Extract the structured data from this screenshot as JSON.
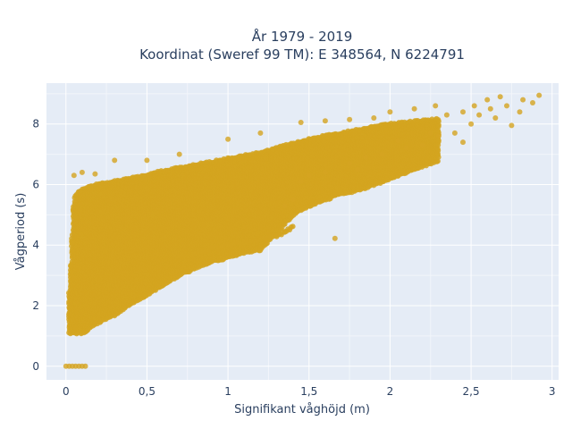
{
  "chart_data": {
    "type": "scatter",
    "title_line1": "År 1979 - 2019",
    "title_line2": "Koordinat (Sweref 99 TM): E 348564, N 6224791",
    "xlabel": "Signifikant våghöjd (m)",
    "ylabel": "Vågperiod (s)",
    "xlim": [
      -0.12,
      3.04
    ],
    "ylim": [
      -0.45,
      9.35
    ],
    "x_ticks": [
      0,
      0.5,
      1,
      1.5,
      2,
      2.5,
      3
    ],
    "x_tick_labels": [
      "0",
      "0,5",
      "1",
      "1,5",
      "2",
      "2,5",
      "3"
    ],
    "y_ticks": [
      0,
      2,
      4,
      6,
      8
    ],
    "y_tick_labels": [
      "0",
      "2",
      "4",
      "6",
      "8"
    ],
    "grid": true,
    "colors": {
      "marker": "#D4A420",
      "plot_bg": "#E5ECF6",
      "grid": "#ffffff",
      "text": "#2a3f5f"
    },
    "density_envelope": {
      "lower": [
        [
          0.02,
          1.1
        ],
        [
          0.1,
          1.1
        ],
        [
          0.2,
          1.45
        ],
        [
          0.3,
          1.7
        ],
        [
          0.4,
          2.05
        ],
        [
          0.5,
          2.35
        ],
        [
          0.6,
          2.7
        ],
        [
          0.7,
          3.0
        ],
        [
          0.8,
          3.25
        ],
        [
          0.9,
          3.45
        ],
        [
          1.0,
          3.6
        ],
        [
          1.1,
          3.75
        ],
        [
          1.2,
          3.85
        ],
        [
          1.3,
          4.4
        ],
        [
          1.4,
          5.0
        ],
        [
          1.5,
          5.3
        ],
        [
          1.6,
          5.5
        ],
        [
          1.7,
          5.7
        ],
        [
          1.8,
          5.8
        ],
        [
          1.9,
          6.0
        ],
        [
          2.0,
          6.2
        ],
        [
          2.1,
          6.4
        ],
        [
          2.2,
          6.6
        ],
        [
          2.3,
          6.8
        ]
      ],
      "upper": [
        [
          0.02,
          2.4
        ],
        [
          0.05,
          5.6
        ],
        [
          0.1,
          5.85
        ],
        [
          0.2,
          6.0
        ],
        [
          0.3,
          6.1
        ],
        [
          0.4,
          6.2
        ],
        [
          0.5,
          6.3
        ],
        [
          0.6,
          6.45
        ],
        [
          0.7,
          6.55
        ],
        [
          0.8,
          6.65
        ],
        [
          0.9,
          6.75
        ],
        [
          1.0,
          6.85
        ],
        [
          1.1,
          6.95
        ],
        [
          1.2,
          7.05
        ],
        [
          1.3,
          7.2
        ],
        [
          1.4,
          7.35
        ],
        [
          1.5,
          7.5
        ],
        [
          1.6,
          7.6
        ],
        [
          1.7,
          7.7
        ],
        [
          1.8,
          7.8
        ],
        [
          1.9,
          7.9
        ],
        [
          2.0,
          8.0
        ],
        [
          2.1,
          8.05
        ],
        [
          2.2,
          8.1
        ],
        [
          2.3,
          8.15
        ]
      ]
    },
    "sparse_points": [
      [
        0.0,
        0.0
      ],
      [
        0.02,
        0.0
      ],
      [
        0.04,
        0.0
      ],
      [
        0.06,
        0.0
      ],
      [
        0.08,
        0.0
      ],
      [
        0.1,
        0.0
      ],
      [
        0.12,
        0.0
      ],
      [
        2.35,
        8.3
      ],
      [
        2.4,
        7.7
      ],
      [
        2.45,
        8.4
      ],
      [
        2.5,
        8.0
      ],
      [
        2.52,
        8.6
      ],
      [
        2.55,
        8.3
      ],
      [
        2.6,
        8.8
      ],
      [
        2.62,
        8.5
      ],
      [
        2.65,
        8.2
      ],
      [
        2.68,
        8.9
      ],
      [
        2.72,
        8.6
      ],
      [
        2.75,
        7.95
      ],
      [
        2.8,
        8.4
      ],
      [
        2.82,
        8.8
      ],
      [
        2.88,
        8.7
      ],
      [
        2.92,
        8.95
      ],
      [
        2.45,
        7.4
      ],
      [
        2.3,
        7.6
      ],
      [
        2.25,
        7.7
      ],
      [
        2.2,
        7.3
      ],
      [
        2.1,
        7.2
      ],
      [
        2.05,
        7.45
      ],
      [
        1.95,
        7.0
      ],
      [
        1.85,
        6.9
      ],
      [
        1.66,
        4.22
      ],
      [
        1.5,
        6.3
      ],
      [
        1.45,
        6.1
      ],
      [
        1.6,
        6.4
      ],
      [
        1.75,
        6.7
      ],
      [
        1.8,
        6.5
      ],
      [
        1.4,
        5.5
      ],
      [
        1.35,
        5.3
      ],
      [
        1.45,
        8.05
      ],
      [
        1.6,
        8.1
      ],
      [
        1.75,
        8.15
      ],
      [
        1.9,
        8.2
      ],
      [
        2.0,
        8.4
      ],
      [
        2.15,
        8.5
      ],
      [
        2.28,
        8.6
      ],
      [
        0.05,
        6.3
      ],
      [
        0.1,
        6.4
      ],
      [
        0.18,
        6.35
      ],
      [
        0.3,
        6.8
      ],
      [
        0.5,
        6.8
      ],
      [
        0.7,
        7.0
      ],
      [
        1.0,
        7.5
      ],
      [
        1.2,
        7.7
      ]
    ],
    "secondary_branch": [
      [
        0.8,
        3.7
      ],
      [
        0.9,
        3.9
      ],
      [
        1.0,
        4.0
      ],
      [
        1.1,
        4.1
      ],
      [
        1.2,
        4.2
      ],
      [
        1.3,
        4.3
      ],
      [
        1.35,
        4.45
      ],
      [
        1.4,
        4.6
      ]
    ]
  }
}
